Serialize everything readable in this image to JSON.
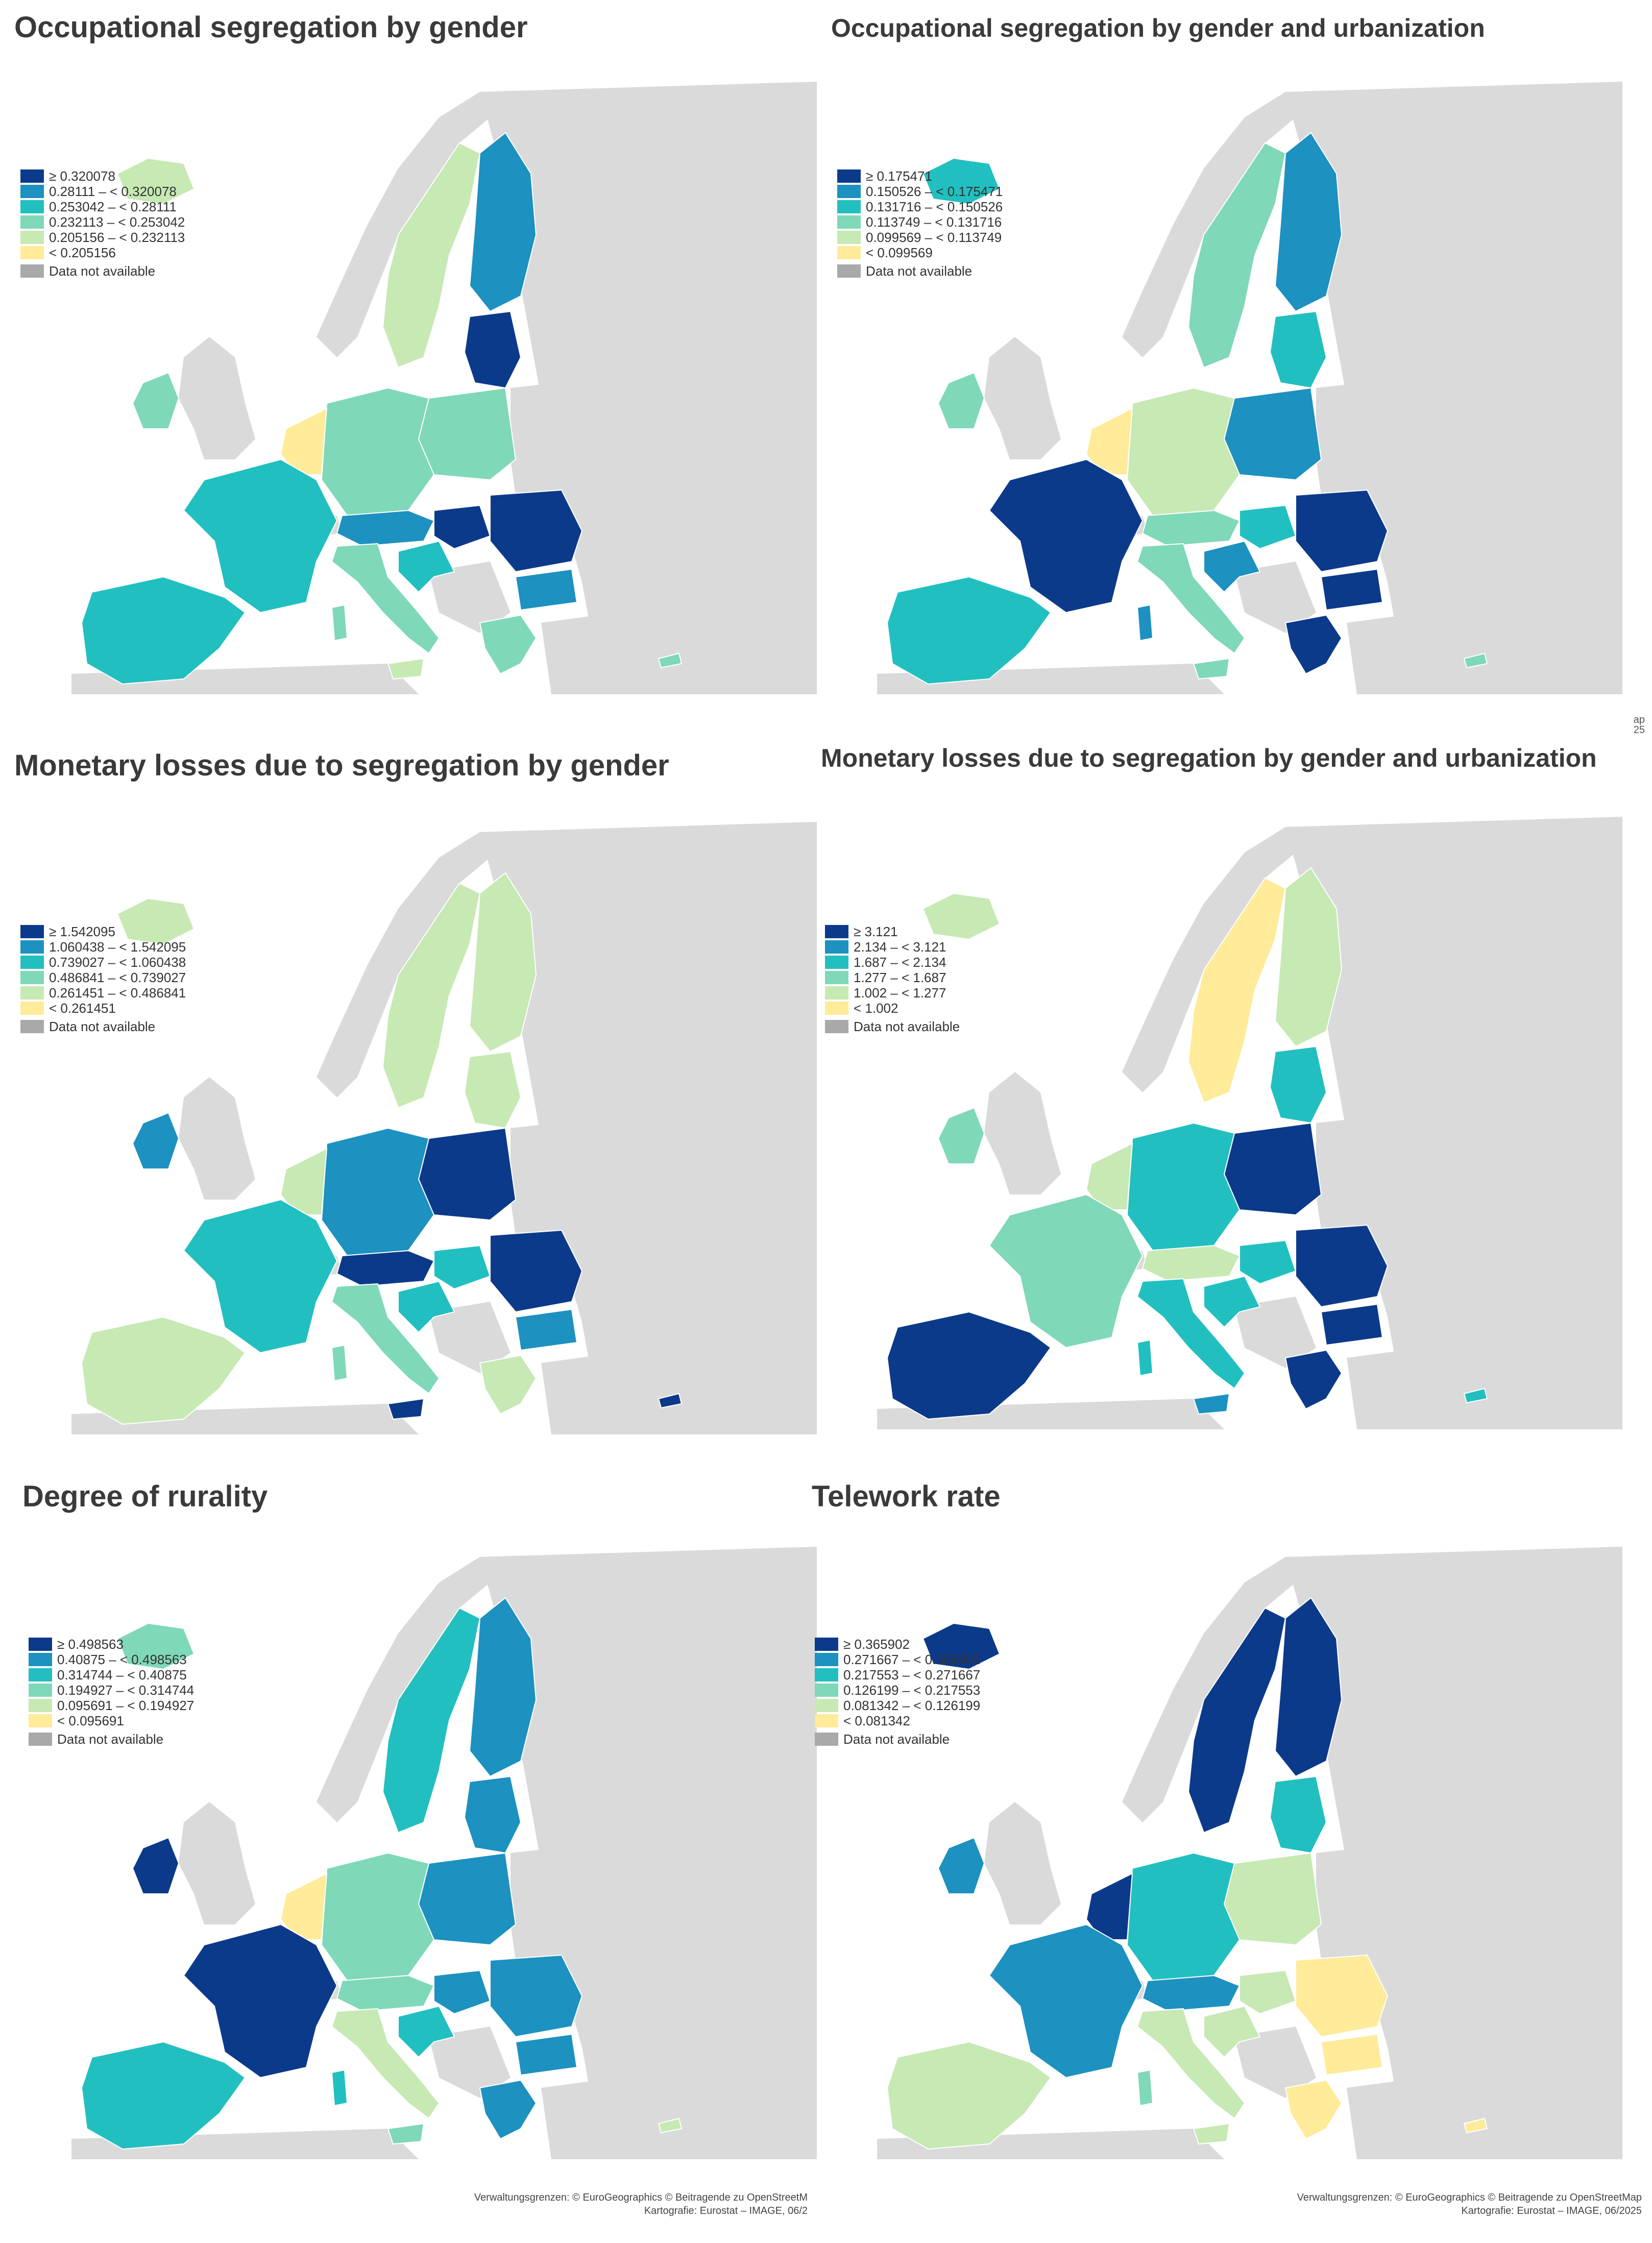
{
  "colors": {
    "class_1": "#ffeb99",
    "class_2": "#c7e9b4",
    "class_3": "#7fd8b8",
    "class_4": "#22bfc0",
    "class_5": "#1d91c0",
    "class_6": "#0c3a8a",
    "no_data": "#a9a9a9",
    "non_eu_land": "#dadada",
    "sea": "#ffffff"
  },
  "panels": [
    {
      "title": "Occupational segregation by gender",
      "legend": [
        "≥ 0.320078",
        "0.28111 – < 0.320078",
        "0.253042 – < 0.28111",
        "0.232113 – < 0.253042",
        "0.205156 – < 0.232113",
        "< 0.205156"
      ],
      "legend_na": "Data not available"
    },
    {
      "title": "Occupational segregation by gender and urbanization",
      "legend": [
        "≥ 0.175471",
        "0.150526 – < 0.175471",
        "0.131716 – < 0.150526",
        "0.113749 – < 0.131716",
        "0.099569 – < 0.113749",
        "< 0.099569"
      ],
      "legend_na": "Data not available"
    },
    {
      "title": "Monetary losses due to segregation by gender",
      "legend": [
        "≥ 1.542095",
        "1.060438 – < 1.542095",
        "0.739027 – < 1.060438",
        "0.486841 – < 0.739027",
        "0.261451 – < 0.486841",
        "< 0.261451"
      ],
      "legend_na": "Data not available"
    },
    {
      "title": "Monetary losses due to segregation by gender and urbanization",
      "legend": [
        "≥ 3.121",
        "2.134 – < 3.121",
        "1.687 – < 2.134",
        "1.277 – < 1.687",
        "1.002 – < 1.277",
        "< 1.002"
      ],
      "legend_na": "Data not available"
    },
    {
      "title": "Degree of rurality",
      "legend": [
        "≥ 0.498563",
        "0.40875 – < 0.498563",
        "0.314744 – < 0.40875",
        "0.194927 – < 0.314744",
        "0.095691 – < 0.194927",
        "< 0.095691"
      ],
      "legend_na": "Data not available"
    },
    {
      "title": "Telework rate",
      "legend": [
        "≥ 0.365902",
        "0.271667 – < 0.365902",
        "0.217553 – < 0.271667",
        "0.126199 – < 0.217553",
        "0.081342 – < 0.126199",
        "< 0.081342"
      ],
      "legend_na": "Data not available"
    }
  ],
  "region_classes": [
    {
      "iceland": 2,
      "ireland": 3,
      "scandinavia": 2,
      "finland": 5,
      "baltics": 6,
      "poland": 3,
      "germany": 3,
      "benelux": 1,
      "france": 4,
      "iberia": 4,
      "italy": 3,
      "sardinia": 3,
      "sicily": 2,
      "alps": 5,
      "balkans_west": 4,
      "hungary": 6,
      "romania": 6,
      "bulgaria": 5,
      "greece": 3,
      "cyprus": 3
    },
    {
      "iceland": 4,
      "ireland": 3,
      "scandinavia": 3,
      "finland": 5,
      "baltics": 4,
      "poland": 5,
      "germany": 2,
      "benelux": 1,
      "france": 6,
      "iberia": 4,
      "italy": 3,
      "sardinia": 5,
      "sicily": 3,
      "alps": 3,
      "balkans_west": 5,
      "hungary": 4,
      "romania": 6,
      "bulgaria": 6,
      "greece": 6,
      "cyprus": 3
    },
    {
      "iceland": 2,
      "ireland": 5,
      "scandinavia": 2,
      "finland": 2,
      "baltics": 2,
      "poland": 6,
      "germany": 5,
      "benelux": 2,
      "france": 4,
      "iberia": 2,
      "italy": 3,
      "sardinia": 3,
      "sicily": 6,
      "alps": 6,
      "balkans_west": 4,
      "hungary": 4,
      "romania": 6,
      "bulgaria": 5,
      "greece": 2,
      "cyprus": 6
    },
    {
      "iceland": 2,
      "ireland": 3,
      "scandinavia": 1,
      "finland": 2,
      "baltics": 4,
      "poland": 6,
      "germany": 4,
      "benelux": 2,
      "france": 3,
      "iberia": 6,
      "italy": 4,
      "sardinia": 4,
      "sicily": 5,
      "alps": 2,
      "balkans_west": 4,
      "hungary": 4,
      "romania": 6,
      "bulgaria": 6,
      "greece": 6,
      "cyprus": 4
    },
    {
      "iceland": 3,
      "ireland": 6,
      "scandinavia": 4,
      "finland": 5,
      "baltics": 5,
      "poland": 5,
      "germany": 3,
      "benelux": 1,
      "france": 6,
      "iberia": 4,
      "italy": 2,
      "sardinia": 4,
      "sicily": 3,
      "alps": 3,
      "balkans_west": 4,
      "hungary": 5,
      "romania": 5,
      "bulgaria": 5,
      "greece": 5,
      "cyprus": 2
    },
    {
      "iceland": 6,
      "ireland": 5,
      "scandinavia": 6,
      "finland": 6,
      "baltics": 4,
      "poland": 2,
      "germany": 4,
      "benelux": 6,
      "france": 5,
      "iberia": 2,
      "italy": 2,
      "sardinia": 3,
      "sicily": 2,
      "alps": 5,
      "balkans_west": 2,
      "hungary": 2,
      "romania": 1,
      "bulgaria": 1,
      "greece": 1,
      "cyprus": 1
    }
  ],
  "crop_text_1": "ap",
  "crop_text_2": "25",
  "footer_left_1": "Verwaltungsgrenzen: © EuroGeographics © Beitragende zu OpenStreetM",
  "footer_left_2": "Kartografie: Eurostat – IMAGE, 06/2",
  "footer_right_1": "Verwaltungsgrenzen: © EuroGeographics © Beitragende zu OpenStreetMap",
  "footer_right_2": "Kartografie: Eurostat – IMAGE, 06/2025"
}
